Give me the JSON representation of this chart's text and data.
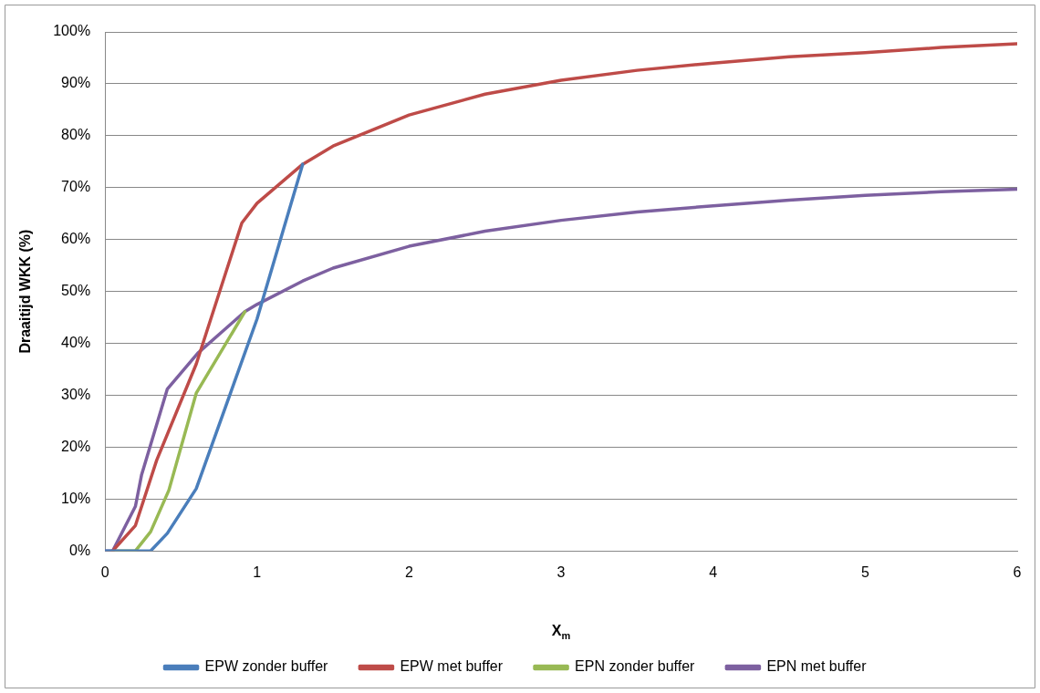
{
  "chart_data": {
    "type": "line",
    "xlabel": "X$_{m}$",
    "ylabel": "Draaitijd WKK (%)",
    "xlim": [
      0,
      6
    ],
    "xticks": [
      0,
      1,
      2,
      3,
      4,
      5,
      6
    ],
    "ylim": [
      0,
      100
    ],
    "yticks": [
      {
        "value": 0,
        "label": "0%"
      },
      {
        "value": 10,
        "label": "10%"
      },
      {
        "value": 20,
        "label": "20%"
      },
      {
        "value": 30,
        "label": "30%"
      },
      {
        "value": 40,
        "label": "40%"
      },
      {
        "value": 50,
        "label": "50%"
      },
      {
        "value": 60,
        "label": "60%"
      },
      {
        "value": 70,
        "label": "70%"
      },
      {
        "value": 80,
        "label": "80%"
      },
      {
        "value": 90,
        "label": "90%"
      },
      {
        "value": 100,
        "label": "100%"
      }
    ],
    "grid": "y",
    "legend": "bottom",
    "marker": "none",
    "line_style": "solid",
    "series": [
      {
        "name": "EPW zonder buffer",
        "color": "#4a7ebb",
        "x": [
          0,
          0.3,
          0.41,
          0.6,
          1,
          1.3
        ],
        "values": [
          0,
          0,
          3.4,
          12,
          44.7,
          74.5
        ]
      },
      {
        "name": "EPW met buffer",
        "color": "#be4b48",
        "x": [
          0.05,
          0.2,
          0.34,
          0.6,
          0.9,
          1,
          1.3,
          1.5,
          2,
          2.5,
          3,
          3.5,
          4,
          4.5,
          5,
          5.5,
          6
        ],
        "values": [
          0,
          4.9,
          17.5,
          36,
          63.2,
          67,
          74.5,
          78,
          84,
          88,
          90.7,
          92.6,
          94,
          95.2,
          96,
          97,
          97.7
        ]
      },
      {
        "name": "EPN zonder buffer",
        "color": "#98b954",
        "x": [
          0.05,
          0.2,
          0.3,
          0.42,
          0.6,
          0.92
        ],
        "values": [
          0,
          0,
          3.7,
          11.7,
          30.4,
          46.1
        ]
      },
      {
        "name": "EPN met buffer",
        "color": "#7d60a0",
        "x": [
          0,
          0.05,
          0.2,
          0.24,
          0.41,
          0.61,
          0.92,
          1,
          1.3,
          1.5,
          2,
          2.5,
          3,
          3.5,
          4,
          4.5,
          5,
          5.5,
          6
        ],
        "values": [
          0,
          0,
          8.6,
          14.6,
          31.2,
          38.1,
          46.1,
          47.5,
          52,
          54.5,
          58.7,
          61.6,
          63.7,
          65.3,
          66.5,
          67.6,
          68.5,
          69.2,
          69.7
        ]
      }
    ]
  }
}
